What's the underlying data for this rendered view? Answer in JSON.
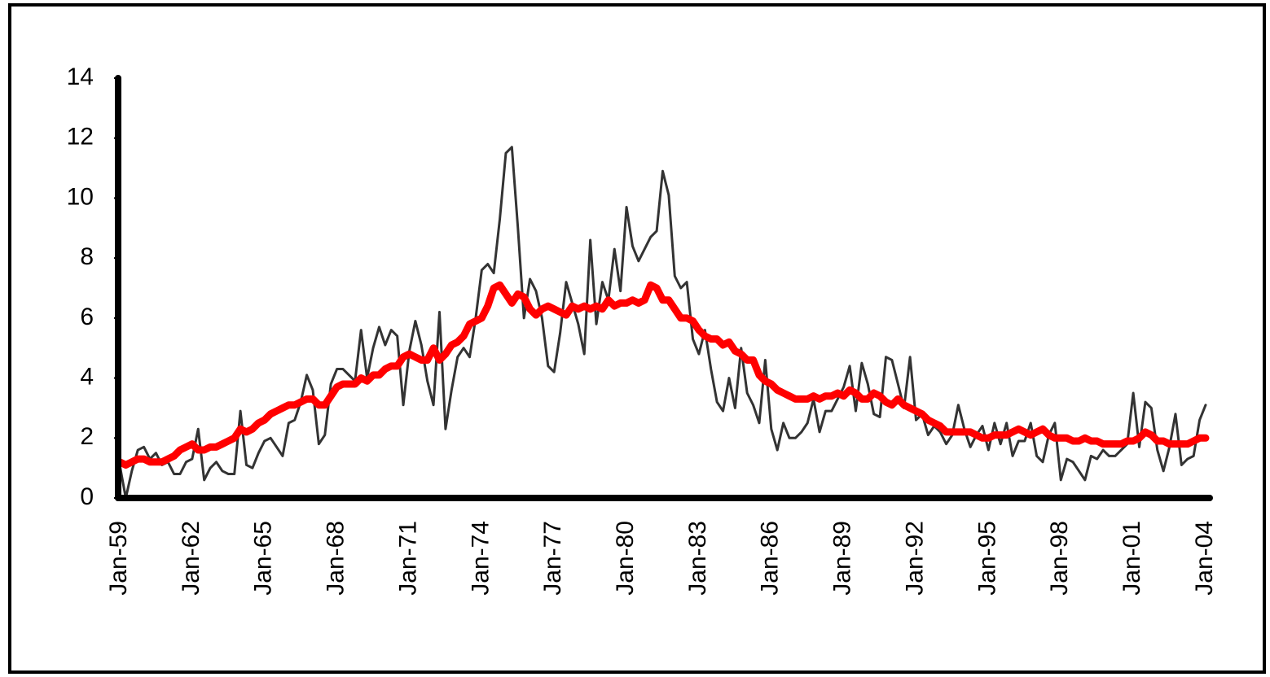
{
  "chart_data": {
    "type": "line",
    "categories": [
      "Jan-59",
      null,
      null,
      null,
      null,
      null,
      null,
      null,
      null,
      null,
      null,
      null,
      "Jan-62",
      null,
      null,
      null,
      null,
      null,
      null,
      null,
      null,
      null,
      null,
      null,
      "Jan-65",
      null,
      null,
      null,
      null,
      null,
      null,
      null,
      null,
      null,
      null,
      null,
      "Jan-68",
      null,
      null,
      null,
      null,
      null,
      null,
      null,
      null,
      null,
      null,
      null,
      "Jan-71",
      null,
      null,
      null,
      null,
      null,
      null,
      null,
      null,
      null,
      null,
      null,
      "Jan-74",
      null,
      null,
      null,
      null,
      null,
      null,
      null,
      null,
      null,
      null,
      null,
      "Jan-77",
      null,
      null,
      null,
      null,
      null,
      null,
      null,
      null,
      null,
      null,
      null,
      "Jan-80",
      null,
      null,
      null,
      null,
      null,
      null,
      null,
      null,
      null,
      null,
      null,
      "Jan-83",
      null,
      null,
      null,
      null,
      null,
      null,
      null,
      null,
      null,
      null,
      null,
      "Jan-86",
      null,
      null,
      null,
      null,
      null,
      null,
      null,
      null,
      null,
      null,
      null,
      "Jan-89",
      null,
      null,
      null,
      null,
      null,
      null,
      null,
      null,
      null,
      null,
      null,
      "Jan-92",
      null,
      null,
      null,
      null,
      null,
      null,
      null,
      null,
      null,
      null,
      null,
      "Jan-95",
      null,
      null,
      null,
      null,
      null,
      null,
      null,
      null,
      null,
      null,
      null,
      "Jan-98",
      null,
      null,
      null,
      null,
      null,
      null,
      null,
      null,
      null,
      null,
      null,
      "Jan-01",
      null,
      null,
      null,
      null,
      null,
      null,
      null,
      null,
      null,
      null,
      null,
      "Jan-04"
    ],
    "series": [
      {
        "color": "#333333",
        "width": 3,
        "values": [
          1.1,
          0.0,
          0.9,
          1.6,
          1.7,
          1.3,
          1.5,
          1.1,
          1.2,
          0.8,
          0.8,
          1.2,
          1.3,
          2.3,
          0.6,
          1.0,
          1.2,
          0.9,
          0.8,
          0.8,
          2.9,
          1.1,
          1.0,
          1.5,
          1.9,
          2.0,
          1.7,
          1.4,
          2.5,
          2.6,
          3.2,
          4.1,
          3.6,
          1.8,
          2.1,
          3.8,
          4.3,
          4.3,
          4.1,
          3.9,
          5.6,
          4.0,
          5.0,
          5.7,
          5.1,
          5.6,
          5.4,
          3.1,
          4.9,
          5.9,
          5.1,
          3.9,
          3.1,
          6.2,
          2.3,
          3.6,
          4.7,
          5.0,
          4.7,
          6.0,
          7.6,
          7.8,
          7.5,
          9.3,
          11.5,
          11.7,
          9.0,
          6.0,
          7.3,
          6.9,
          6.0,
          4.4,
          4.2,
          5.5,
          7.2,
          6.5,
          5.8,
          4.8,
          8.6,
          5.8,
          7.2,
          6.6,
          8.3,
          6.9,
          9.7,
          8.4,
          7.9,
          8.3,
          8.7,
          8.9,
          10.9,
          10.1,
          7.4,
          7.0,
          7.2,
          5.3,
          4.8,
          5.6,
          4.3,
          3.2,
          2.9,
          4.0,
          3.0,
          5.0,
          3.5,
          3.1,
          2.5,
          4.6,
          2.3,
          1.6,
          2.5,
          2.0,
          2.0,
          2.2,
          2.5,
          3.3,
          2.2,
          2.9,
          2.9,
          3.3,
          3.7,
          4.4,
          2.9,
          4.5,
          3.8,
          2.8,
          2.7,
          4.7,
          4.6,
          3.8,
          3.0,
          4.7,
          2.6,
          2.8,
          2.1,
          2.4,
          2.2,
          1.8,
          2.1,
          3.1,
          2.3,
          1.7,
          2.1,
          2.4,
          1.6,
          2.5,
          1.8,
          2.5,
          1.4,
          1.9,
          1.9,
          2.5,
          1.4,
          1.2,
          2.1,
          2.5,
          0.6,
          1.3,
          1.2,
          0.9,
          0.6,
          1.4,
          1.3,
          1.6,
          1.4,
          1.4,
          1.6,
          1.8,
          3.5,
          1.7,
          3.2,
          3.0,
          1.6,
          0.9,
          1.7,
          2.8,
          1.1,
          1.3,
          1.4,
          2.6,
          3.1
        ]
      },
      {
        "color": "#ff0000",
        "width": 9,
        "values": [
          1.2,
          1.1,
          1.2,
          1.3,
          1.3,
          1.2,
          1.2,
          1.2,
          1.3,
          1.4,
          1.6,
          1.7,
          1.8,
          1.6,
          1.6,
          1.7,
          1.7,
          1.8,
          1.9,
          2.0,
          2.3,
          2.2,
          2.3,
          2.5,
          2.6,
          2.8,
          2.9,
          3.0,
          3.1,
          3.1,
          3.2,
          3.3,
          3.3,
          3.1,
          3.1,
          3.4,
          3.7,
          3.8,
          3.8,
          3.8,
          4.0,
          3.9,
          4.1,
          4.1,
          4.3,
          4.4,
          4.4,
          4.7,
          4.8,
          4.7,
          4.6,
          4.6,
          5.0,
          4.6,
          4.8,
          5.1,
          5.2,
          5.4,
          5.8,
          5.9,
          6.0,
          6.4,
          7.0,
          7.1,
          6.8,
          6.5,
          6.8,
          6.7,
          6.3,
          6.1,
          6.3,
          6.4,
          6.3,
          6.2,
          6.1,
          6.4,
          6.3,
          6.4,
          6.3,
          6.4,
          6.3,
          6.6,
          6.4,
          6.5,
          6.5,
          6.6,
          6.5,
          6.6,
          7.1,
          7.0,
          6.6,
          6.6,
          6.3,
          6.0,
          6.0,
          5.9,
          5.6,
          5.4,
          5.3,
          5.3,
          5.1,
          5.2,
          4.9,
          4.8,
          4.6,
          4.6,
          4.1,
          3.9,
          3.8,
          3.6,
          3.5,
          3.4,
          3.3,
          3.3,
          3.3,
          3.4,
          3.3,
          3.4,
          3.4,
          3.5,
          3.4,
          3.6,
          3.5,
          3.3,
          3.3,
          3.5,
          3.4,
          3.2,
          3.1,
          3.3,
          3.1,
          3.0,
          2.9,
          2.8,
          2.6,
          2.5,
          2.4,
          2.2,
          2.2,
          2.2,
          2.2,
          2.2,
          2.1,
          2.0,
          2.0,
          2.1,
          2.1,
          2.1,
          2.2,
          2.3,
          2.2,
          2.1,
          2.2,
          2.3,
          2.1,
          2.0,
          2.0,
          2.0,
          1.9,
          1.9,
          2.0,
          1.9,
          1.9,
          1.8,
          1.8,
          1.8,
          1.8,
          1.9,
          1.9,
          2.0,
          2.2,
          2.1,
          1.9,
          1.9,
          1.8,
          1.8,
          1.8,
          1.8,
          1.9,
          2.0,
          2.0
        ]
      }
    ],
    "ylim": [
      0,
      14
    ],
    "yticks": [
      0,
      2,
      4,
      6,
      8,
      10,
      12,
      14
    ],
    "grid": false
  }
}
